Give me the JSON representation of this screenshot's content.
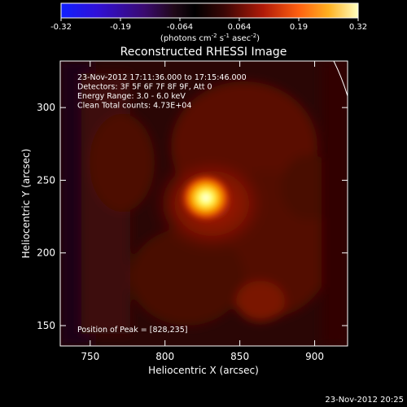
{
  "colorbar": {
    "ticks": [
      "-0.32",
      "-0.19",
      "-0.064",
      "0.064",
      "0.19",
      "0.32"
    ],
    "units_main": "(photons cm",
    "units_exp1": "-2",
    "units_mid": " s",
    "units_exp2": "-1",
    "units_end": " asec",
    "units_exp3": "-2",
    "units_close": ")"
  },
  "image": {
    "title": "Reconstructed RHESSI Image",
    "info_lines": [
      "23-Nov-2012 17:11:36.000 to 17:15:46.000",
      "Detectors: 3F 5F 6F 7F 8F 9F, Att 0",
      "Energy Range: 3.0 - 6.0 keV",
      "Clean     Total counts: 4.73E+04"
    ],
    "peak_label": "Position of Peak = [828,235]"
  },
  "axes": {
    "x_label": "Heliocentric X (arcsec)",
    "y_label": "Heliocentric Y (arcsec)",
    "x_ticks": [
      750,
      800,
      850,
      900
    ],
    "y_ticks": [
      150,
      200,
      250,
      300
    ],
    "x_range": [
      730,
      922
    ],
    "y_range": [
      136,
      332
    ]
  },
  "footer": {
    "timestamp": "23-Nov-2012 20:25"
  }
}
